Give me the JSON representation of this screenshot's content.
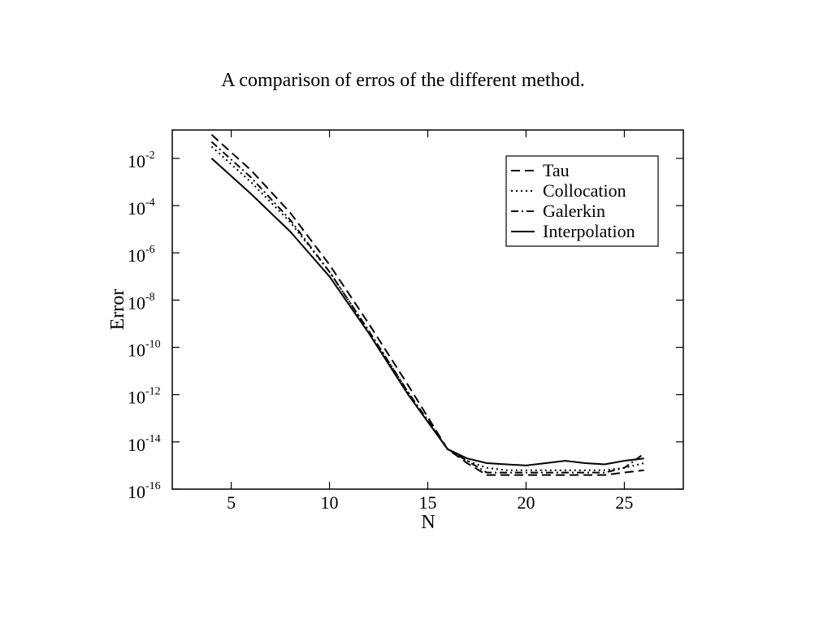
{
  "slide": {
    "title": "A comparison of erros of the different method."
  },
  "chart_data": {
    "type": "line",
    "title": "",
    "xlabel": "N",
    "ylabel": "Error",
    "xlim": [
      2,
      28
    ],
    "ylim_log10": [
      -16,
      -0.8
    ],
    "y_scale": "log",
    "x_ticks": [
      5,
      10,
      15,
      20,
      25
    ],
    "y_ticks": [
      {
        "base": "10",
        "exp": "-2",
        "value_log10": -2
      },
      {
        "base": "10",
        "exp": "-4",
        "value_log10": -4
      },
      {
        "base": "10",
        "exp": "-6",
        "value_log10": -6
      },
      {
        "base": "10",
        "exp": "-8",
        "value_log10": -8
      },
      {
        "base": "10",
        "exp": "-10",
        "value_log10": -10
      },
      {
        "base": "10",
        "exp": "-12",
        "value_log10": -12
      },
      {
        "base": "10",
        "exp": "-14",
        "value_log10": -14
      },
      {
        "base": "10",
        "exp": "-16",
        "value_log10": -16
      }
    ],
    "grid": false,
    "legend_position": "top-right",
    "series": [
      {
        "name": "Tau",
        "style": "dashed",
        "x": [
          4,
          6,
          8,
          10,
          12,
          14,
          16,
          17,
          18,
          19,
          20,
          21,
          22,
          23,
          24,
          25,
          26
        ],
        "log10_y": [
          -1.0,
          -2.5,
          -4.3,
          -6.5,
          -9.0,
          -11.6,
          -14.3,
          -14.9,
          -15.4,
          -15.4,
          -15.4,
          -15.4,
          -15.4,
          -15.4,
          -15.4,
          -15.3,
          -15.2
        ]
      },
      {
        "name": "Collocation",
        "style": "dotted",
        "x": [
          4,
          6,
          8,
          10,
          12,
          14,
          16,
          17,
          18,
          19,
          20,
          21,
          22,
          23,
          24,
          25,
          26
        ],
        "log10_y": [
          -1.5,
          -3.0,
          -4.7,
          -6.8,
          -9.3,
          -11.9,
          -14.3,
          -14.8,
          -15.1,
          -15.2,
          -15.2,
          -15.2,
          -15.2,
          -15.2,
          -15.2,
          -15.1,
          -14.9
        ]
      },
      {
        "name": "Galerkin",
        "style": "dashdot",
        "x": [
          4,
          6,
          8,
          10,
          12,
          14,
          16,
          17,
          18,
          19,
          20,
          21,
          22,
          23,
          24,
          25,
          26
        ],
        "log10_y": [
          -1.3,
          -2.8,
          -4.6,
          -6.8,
          -9.3,
          -11.9,
          -14.3,
          -14.8,
          -15.3,
          -15.3,
          -15.3,
          -15.3,
          -15.3,
          -15.3,
          -15.3,
          -15.1,
          -14.5
        ]
      },
      {
        "name": "Interpolation",
        "style": "solid",
        "x": [
          4,
          6,
          8,
          10,
          12,
          14,
          16,
          17,
          18,
          19,
          20,
          21,
          22,
          23,
          24,
          25,
          26
        ],
        "log10_y": [
          -2.0,
          -3.5,
          -5.1,
          -7.0,
          -9.4,
          -12.0,
          -14.3,
          -14.7,
          -14.9,
          -14.95,
          -15.0,
          -14.9,
          -14.8,
          -14.9,
          -14.95,
          -14.8,
          -14.7
        ]
      }
    ]
  }
}
